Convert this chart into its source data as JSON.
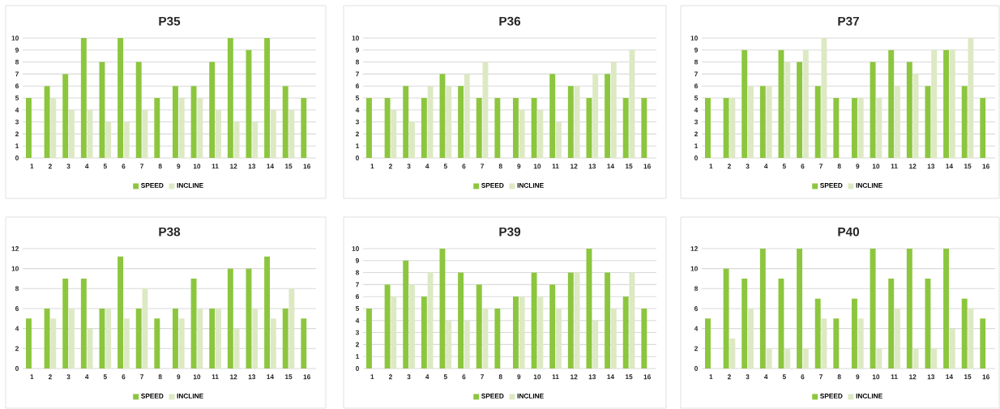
{
  "chart_data": [
    {
      "type": "bar",
      "title": "P35",
      "categories": [
        "1",
        "2",
        "3",
        "4",
        "5",
        "6",
        "7",
        "8",
        "9",
        "10",
        "11",
        "12",
        "13",
        "14",
        "15",
        "16"
      ],
      "ylim": [
        0,
        10
      ],
      "yticks": [
        0,
        1,
        2,
        3,
        4,
        5,
        6,
        7,
        8,
        9,
        10
      ],
      "grid": "y",
      "legend": "bottom",
      "series": [
        {
          "name": "SPEED",
          "color": "#8cc63e",
          "values": [
            5,
            6,
            7,
            10,
            8,
            10,
            8,
            5,
            6,
            6,
            8,
            10,
            9,
            10,
            6,
            5
          ]
        },
        {
          "name": "INCLINE",
          "color": "#dde9c3",
          "values": [
            null,
            5,
            4,
            4,
            3,
            3,
            4,
            null,
            5,
            5,
            4,
            3,
            3,
            4,
            4,
            null
          ]
        }
      ]
    },
    {
      "type": "bar",
      "title": "P36",
      "categories": [
        "1",
        "2",
        "3",
        "4",
        "5",
        "6",
        "7",
        "8",
        "9",
        "10",
        "11",
        "12",
        "13",
        "14",
        "15",
        "16"
      ],
      "ylim": [
        0,
        10
      ],
      "yticks": [
        0,
        1,
        2,
        3,
        4,
        5,
        6,
        7,
        8,
        9,
        10
      ],
      "grid": "y",
      "legend": "bottom",
      "series": [
        {
          "name": "SPEED",
          "color": "#8cc63e",
          "values": [
            5,
            5,
            6,
            5,
            7,
            6,
            5,
            5,
            5,
            5,
            7,
            6,
            5,
            7,
            5,
            5
          ]
        },
        {
          "name": "INCLINE",
          "color": "#dde9c3",
          "values": [
            null,
            4,
            3,
            6,
            6,
            7,
            8,
            null,
            4,
            4,
            3,
            6,
            7,
            8,
            9,
            null
          ]
        }
      ]
    },
    {
      "type": "bar",
      "title": "P37",
      "categories": [
        "1",
        "2",
        "3",
        "4",
        "5",
        "6",
        "7",
        "8",
        "9",
        "10",
        "11",
        "12",
        "13",
        "14",
        "15",
        "16"
      ],
      "ylim": [
        0,
        10
      ],
      "yticks": [
        0,
        1,
        2,
        3,
        4,
        5,
        6,
        7,
        8,
        9,
        10
      ],
      "grid": "y",
      "legend": "bottom",
      "series": [
        {
          "name": "SPEED",
          "color": "#8cc63e",
          "values": [
            5,
            5,
            9,
            6,
            9,
            8,
            6,
            5,
            5,
            8,
            9,
            8,
            6,
            9,
            6,
            5
          ]
        },
        {
          "name": "INCLINE",
          "color": "#dde9c3",
          "values": [
            null,
            5,
            6,
            6,
            8,
            9,
            10,
            null,
            5,
            5,
            6,
            7,
            9,
            9,
            10,
            null
          ]
        }
      ]
    },
    {
      "type": "bar",
      "title": "P38",
      "categories": [
        "1",
        "2",
        "3",
        "4",
        "5",
        "6",
        "7",
        "8",
        "9",
        "10",
        "11",
        "12",
        "13",
        "14",
        "15",
        "16"
      ],
      "ylim": [
        0,
        12
      ],
      "yticks": [
        0,
        2,
        4,
        6,
        8,
        10,
        12
      ],
      "grid": "y",
      "legend": "bottom",
      "series": [
        {
          "name": "SPEED",
          "color": "#8cc63e",
          "values": [
            5,
            6,
            9,
            9,
            6,
            11.2,
            6,
            5,
            6,
            9,
            6,
            10,
            10,
            11.2,
            6,
            5
          ]
        },
        {
          "name": "INCLINE",
          "color": "#dde9c3",
          "values": [
            null,
            5,
            6,
            4,
            6,
            5,
            8,
            null,
            5,
            6,
            6,
            4,
            6,
            5,
            8,
            null
          ]
        }
      ]
    },
    {
      "type": "bar",
      "title": "P39",
      "categories": [
        "1",
        "2",
        "3",
        "4",
        "5",
        "6",
        "7",
        "8",
        "9",
        "10",
        "11",
        "12",
        "13",
        "14",
        "15",
        "16"
      ],
      "ylim": [
        0,
        10
      ],
      "yticks": [
        0,
        1,
        2,
        3,
        4,
        5,
        6,
        7,
        8,
        9,
        10
      ],
      "grid": "y",
      "legend": "bottom",
      "series": [
        {
          "name": "SPEED",
          "color": "#8cc63e",
          "values": [
            5,
            7,
            9,
            6,
            10,
            8,
            7,
            5,
            6,
            8,
            7,
            8,
            10,
            8,
            6,
            5
          ]
        },
        {
          "name": "INCLINE",
          "color": "#dde9c3",
          "values": [
            null,
            6,
            7,
            8,
            4,
            4,
            5,
            null,
            6,
            6,
            5,
            8,
            4,
            5,
            8,
            null
          ]
        }
      ]
    },
    {
      "type": "bar",
      "title": "P40",
      "categories": [
        "1",
        "2",
        "3",
        "4",
        "5",
        "6",
        "7",
        "8",
        "9",
        "10",
        "11",
        "12",
        "13",
        "14",
        "15",
        "16"
      ],
      "ylim": [
        0,
        12
      ],
      "yticks": [
        0,
        2,
        4,
        6,
        8,
        10,
        12
      ],
      "grid": "y",
      "legend": "bottom",
      "series": [
        {
          "name": "SPEED",
          "color": "#8cc63e",
          "values": [
            5,
            10,
            9,
            12,
            9,
            12,
            7,
            5,
            7,
            12,
            9,
            12,
            9,
            12,
            7,
            5
          ]
        },
        {
          "name": "INCLINE",
          "color": "#dde9c3",
          "values": [
            null,
            3,
            6,
            2,
            2,
            2,
            5,
            null,
            5,
            2,
            6,
            2,
            2,
            4,
            6,
            null
          ]
        }
      ]
    }
  ]
}
